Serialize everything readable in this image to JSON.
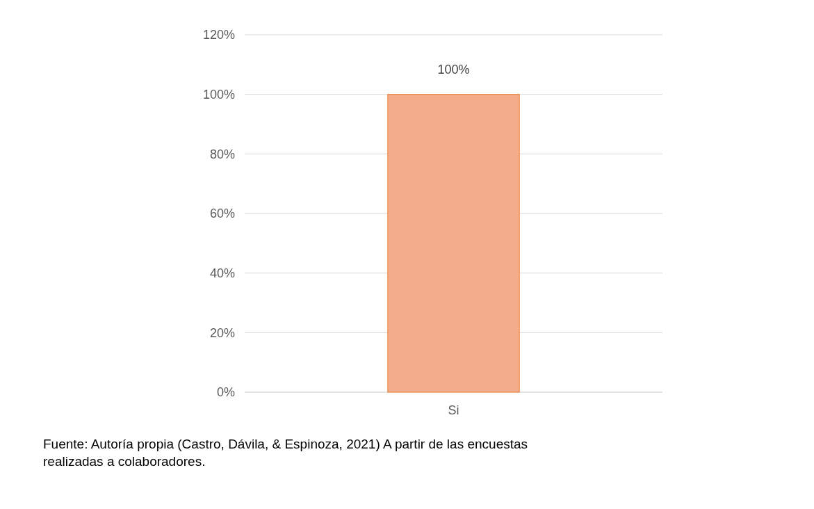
{
  "chart_data": {
    "type": "bar",
    "categories": [
      "Si"
    ],
    "values": [
      100
    ],
    "color": "#f4ad8b",
    "value_labels": [
      "100%"
    ],
    "ylim": [
      0,
      120
    ],
    "yticks": [
      {
        "value": 0,
        "label": "0%"
      },
      {
        "value": 20,
        "label": "20%"
      },
      {
        "value": 40,
        "label": "40%"
      },
      {
        "value": 60,
        "label": "60%"
      },
      {
        "value": 80,
        "label": "80%"
      },
      {
        "value": 100,
        "label": "100%"
      },
      {
        "value": 120,
        "label": "120%"
      }
    ],
    "grid": "y",
    "annotations": [
      "Fuente: Autoría propia (Castro, Dávila, & Espinoza, 2021) A partir de las encuestas realizadas a colaboradores."
    ]
  }
}
